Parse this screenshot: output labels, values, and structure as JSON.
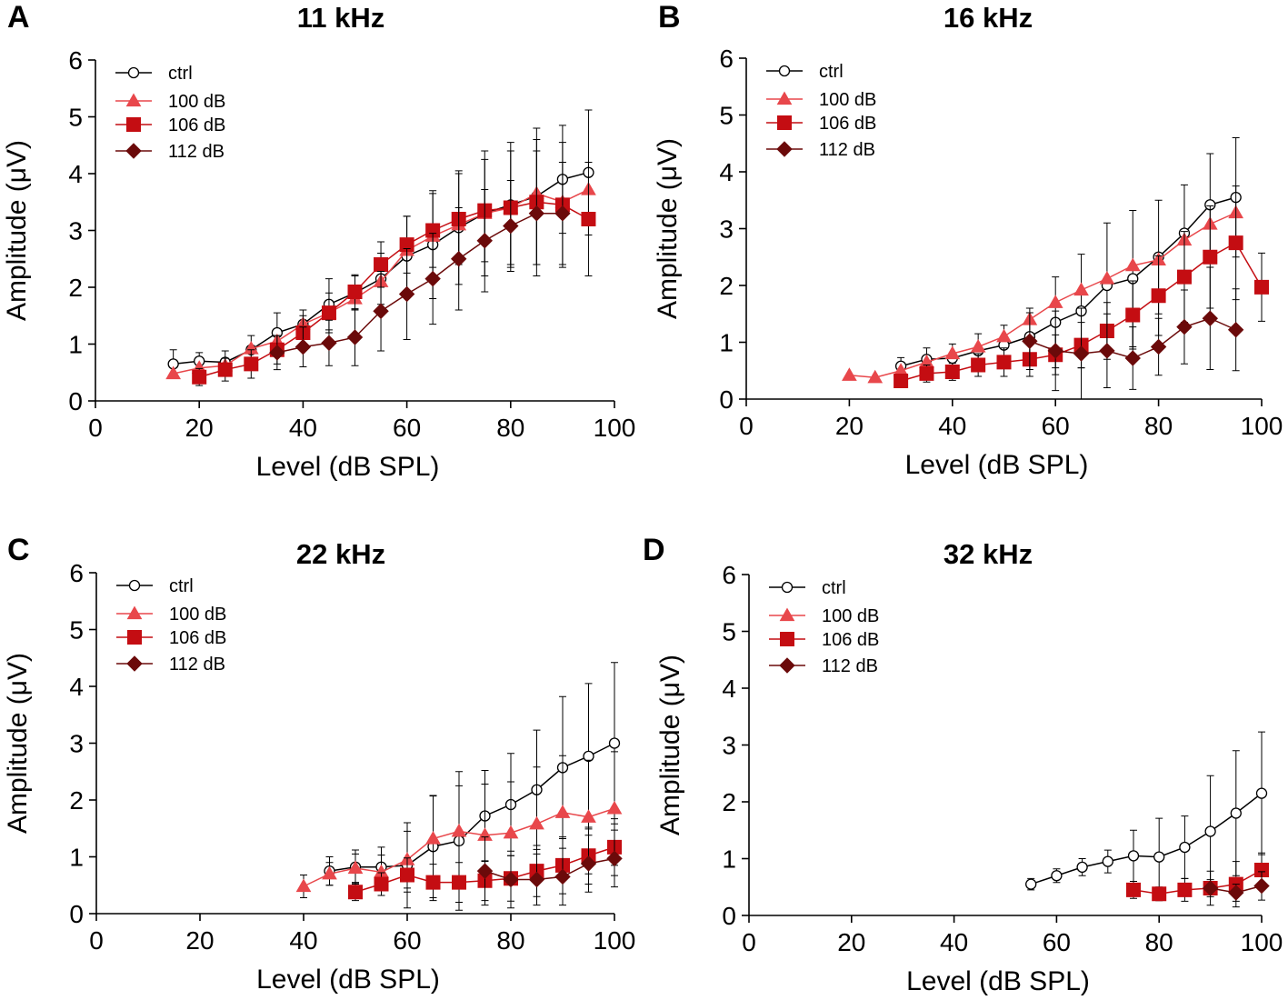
{
  "figure": {
    "colors": {
      "ctrl": "#000000",
      "100 dB": "#e8474b",
      "106 dB": "#c40d12",
      "112 dB": "#6b0a0a"
    }
  },
  "chart_data": [
    {
      "type": "line",
      "letter": "A",
      "title": "11 kHz",
      "xlabel": "Level (dB SPL)",
      "ylabel": "Amplitude (μV)",
      "xlim": [
        0,
        100
      ],
      "ylim": [
        0,
        6
      ],
      "xticks": [
        0,
        20,
        40,
        60,
        80,
        100
      ],
      "yticks": [
        0,
        1,
        2,
        3,
        4,
        5,
        6
      ],
      "legend": [
        "ctrl",
        "100 dB",
        "106 dB",
        "112 dB"
      ],
      "series": [
        {
          "name": "ctrl",
          "marker": "circle-open",
          "x": [
            15,
            20,
            25,
            30,
            35,
            40,
            45,
            50,
            55,
            60,
            65,
            70,
            75,
            80,
            85,
            90,
            95
          ],
          "y": [
            0.65,
            0.7,
            0.68,
            0.9,
            1.2,
            1.35,
            1.7,
            1.9,
            2.15,
            2.55,
            2.75,
            3.05,
            3.3,
            3.45,
            3.6,
            3.9,
            4.02
          ],
          "err": [
            0.25,
            0.15,
            0.2,
            0.25,
            0.35,
            0.25,
            0.45,
            0.3,
            0.45,
            0.7,
            0.95,
            1.0,
            1.1,
            1.1,
            1.2,
            0.95,
            1.1
          ]
        },
        {
          "name": "100 dB",
          "marker": "triangle",
          "x": [
            15,
            20,
            25,
            30,
            35,
            40,
            45,
            50,
            55,
            60,
            65,
            70,
            75,
            80,
            85,
            90,
            95
          ],
          "y": [
            0.48,
            0.58,
            0.62,
            0.92,
            1.05,
            1.35,
            1.55,
            1.8,
            2.1,
            2.65,
            2.9,
            3.1,
            3.3,
            3.4,
            3.65,
            3.5,
            3.72
          ],
          "err": [
            0,
            0,
            0,
            0,
            0,
            0,
            0,
            0,
            0,
            0,
            0,
            0,
            0,
            0,
            0,
            0,
            0
          ]
        },
        {
          "name": "106 dB",
          "marker": "square",
          "x": [
            20,
            25,
            30,
            35,
            40,
            45,
            50,
            55,
            60,
            65,
            70,
            75,
            80,
            85,
            90,
            95
          ],
          "y": [
            0.42,
            0.55,
            0.65,
            0.9,
            1.2,
            1.55,
            1.92,
            2.4,
            2.75,
            3.0,
            3.2,
            3.35,
            3.4,
            3.5,
            3.45,
            3.2
          ],
          "err": [
            0.15,
            0.2,
            0.25,
            0.25,
            0.3,
            0.35,
            0.3,
            0.4,
            0.5,
            0.65,
            0.8,
            0.9,
            1.0,
            1.1,
            1.1,
            1.0
          ]
        },
        {
          "name": "112 dB",
          "marker": "diamond",
          "x": [
            35,
            40,
            45,
            50,
            55,
            60,
            65,
            70,
            75,
            80,
            85,
            90
          ],
          "y": [
            0.85,
            0.95,
            1.02,
            1.12,
            1.58,
            1.88,
            2.15,
            2.5,
            2.82,
            3.08,
            3.3,
            3.3
          ],
          "err": [
            0.3,
            0.35,
            0.4,
            0.5,
            0.7,
            0.8,
            0.8,
            0.9,
            0.9,
            0.8,
            1.1,
            0.9
          ]
        }
      ]
    },
    {
      "type": "line",
      "letter": "B",
      "title": "16 kHz",
      "xlabel": "Level (dB SPL)",
      "ylabel": "Amplitude (μV)",
      "xlim": [
        0,
        100
      ],
      "ylim": [
        0,
        6
      ],
      "xticks": [
        0,
        20,
        40,
        60,
        80,
        100
      ],
      "yticks": [
        0,
        1,
        2,
        3,
        4,
        5,
        6
      ],
      "legend": [
        "ctrl",
        "100 dB",
        "106 dB",
        "112 dB"
      ],
      "series": [
        {
          "name": "ctrl",
          "marker": "circle-open",
          "x": [
            30,
            35,
            40,
            45,
            50,
            55,
            60,
            65,
            70,
            75,
            80,
            85,
            90,
            95
          ],
          "y": [
            0.58,
            0.7,
            0.72,
            0.85,
            0.95,
            1.1,
            1.35,
            1.55,
            2.0,
            2.12,
            2.5,
            2.92,
            3.42,
            3.55
          ],
          "err": [
            0.15,
            0.2,
            0.25,
            0.3,
            0.35,
            0.5,
            0.8,
            1.0,
            1.1,
            1.2,
            1.0,
            0.85,
            0.9,
            1.05
          ]
        },
        {
          "name": "100 dB",
          "marker": "triangle",
          "x": [
            20,
            25,
            30,
            35,
            40,
            45,
            50,
            55,
            60,
            65,
            70,
            75,
            80,
            85,
            90,
            95
          ],
          "y": [
            0.42,
            0.38,
            0.5,
            0.65,
            0.8,
            0.92,
            1.1,
            1.4,
            1.7,
            1.92,
            2.12,
            2.35,
            2.45,
            2.8,
            3.08,
            3.28
          ],
          "err": [
            0,
            0,
            0,
            0,
            0,
            0,
            0,
            0,
            0,
            0,
            0,
            0,
            0,
            0,
            0,
            0
          ]
        },
        {
          "name": "106 dB",
          "marker": "square",
          "x": [
            30,
            35,
            40,
            45,
            50,
            55,
            60,
            65,
            70,
            75,
            80,
            85,
            90,
            95,
            100
          ],
          "y": [
            0.32,
            0.45,
            0.48,
            0.6,
            0.65,
            0.7,
            0.78,
            0.95,
            1.2,
            1.48,
            1.82,
            2.15,
            2.5,
            2.75,
            1.97
          ],
          "err": [
            0.1,
            0.15,
            0.15,
            0.2,
            0.25,
            0.3,
            0.35,
            0.4,
            0.5,
            0.6,
            0.7,
            0.8,
            0.9,
            1.0,
            0.6
          ]
        },
        {
          "name": "112 dB",
          "marker": "diamond",
          "x": [
            55,
            60,
            65,
            70,
            75,
            80,
            85,
            90,
            95
          ],
          "y": [
            1.02,
            0.85,
            0.8,
            0.85,
            0.72,
            0.92,
            1.27,
            1.42,
            1.22
          ],
          "err": [
            0.5,
            0.7,
            0.8,
            0.65,
            0.55,
            0.5,
            0.65,
            0.9,
            0.72
          ]
        }
      ]
    },
    {
      "type": "line",
      "letter": "C",
      "title": "22 kHz",
      "xlabel": "Level (dB SPL)",
      "ylabel": "Amplitude (μV)",
      "xlim": [
        0,
        100
      ],
      "ylim": [
        0,
        6
      ],
      "xticks": [
        0,
        20,
        40,
        60,
        80,
        100
      ],
      "yticks": [
        0,
        1,
        2,
        3,
        4,
        5,
        6
      ],
      "legend": [
        "ctrl",
        "100 dB",
        "106 dB",
        "112 dB"
      ],
      "series": [
        {
          "name": "ctrl",
          "marker": "circle-open",
          "x": [
            45,
            50,
            55,
            60,
            65,
            70,
            75,
            80,
            85,
            90,
            95,
            100
          ],
          "y": [
            0.75,
            0.82,
            0.82,
            0.85,
            1.18,
            1.28,
            1.72,
            1.92,
            2.18,
            2.57,
            2.77,
            3.0
          ],
          "err": [
            0.25,
            0.3,
            0.35,
            0.75,
            0.9,
            1.22,
            0.8,
            0.9,
            1.05,
            1.25,
            1.28,
            1.42
          ]
        },
        {
          "name": "100 dB",
          "marker": "triangle",
          "x": [
            40,
            45,
            50,
            55,
            60,
            65,
            70,
            75,
            80,
            85,
            90,
            95,
            100
          ],
          "y": [
            0.48,
            0.7,
            0.8,
            0.73,
            0.95,
            1.32,
            1.45,
            1.38,
            1.42,
            1.58,
            1.78,
            1.7,
            1.85
          ],
          "err": [
            0.2,
            0.2,
            0.25,
            0.3,
            0.5,
            0.75,
            0.8,
            0.9,
            0.9,
            1.0,
            1.0,
            1.0,
            1.0
          ]
        },
        {
          "name": "106 dB",
          "marker": "square",
          "x": [
            50,
            55,
            60,
            65,
            70,
            75,
            80,
            85,
            90,
            95,
            100
          ],
          "y": [
            0.38,
            0.52,
            0.68,
            0.55,
            0.55,
            0.58,
            0.62,
            0.75,
            0.85,
            1.02,
            1.17
          ],
          "err": [
            0.15,
            0.2,
            0.3,
            0.32,
            0.35,
            0.35,
            0.4,
            0.45,
            0.5,
            0.5,
            0.5
          ]
        },
        {
          "name": "112 dB",
          "marker": "diamond",
          "x": [
            75,
            80,
            85,
            90,
            95,
            100
          ],
          "y": [
            0.75,
            0.6,
            0.6,
            0.65,
            0.88,
            0.97
          ],
          "err": [
            0.6,
            0.5,
            0.45,
            0.5,
            0.5,
            0.5
          ]
        }
      ]
    },
    {
      "type": "line",
      "letter": "D",
      "title": "32 kHz",
      "xlabel": "Level (dB SPL)",
      "ylabel": "Amplitude (μV)",
      "xlim": [
        0,
        100
      ],
      "ylim": [
        0,
        6
      ],
      "xticks": [
        0,
        20,
        40,
        60,
        80,
        100
      ],
      "yticks": [
        0,
        1,
        2,
        3,
        4,
        5,
        6
      ],
      "legend": [
        "ctrl",
        "100 dB",
        "106 dB",
        "112 dB"
      ],
      "series": [
        {
          "name": "ctrl",
          "marker": "circle-open",
          "x": [
            55,
            60,
            65,
            70,
            75,
            80,
            85,
            90,
            95,
            100
          ],
          "y": [
            0.55,
            0.7,
            0.85,
            0.95,
            1.05,
            1.03,
            1.2,
            1.48,
            1.8,
            2.15
          ],
          "err": [
            0.1,
            0.12,
            0.15,
            0.2,
            0.45,
            0.68,
            0.55,
            0.98,
            1.1,
            1.08
          ]
        },
        {
          "name": "100 dB",
          "marker": "triangle",
          "x": [],
          "y": [],
          "err": []
        },
        {
          "name": "106 dB",
          "marker": "square",
          "x": [
            75,
            80,
            85,
            90,
            95,
            100
          ],
          "y": [
            0.45,
            0.38,
            0.45,
            0.48,
            0.55,
            0.8
          ],
          "err": [
            0.15,
            0.12,
            0.2,
            0.3,
            0.4,
            0.3
          ]
        },
        {
          "name": "112 dB",
          "marker": "diamond",
          "x": [
            90,
            95,
            100
          ],
          "y": [
            0.48,
            0.4,
            0.52
          ],
          "err": [
            0.15,
            0.15,
            0.25
          ]
        }
      ]
    }
  ]
}
